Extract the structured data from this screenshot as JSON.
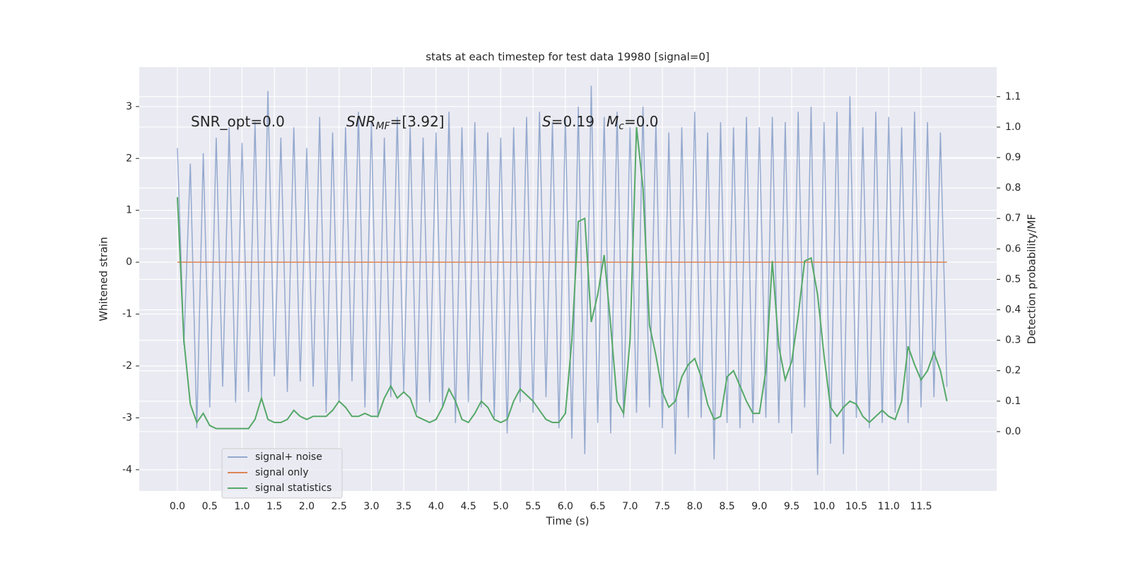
{
  "chart_data": {
    "type": "line",
    "title": "stats at each timestep for test data 19980 [signal=0]",
    "x_label": "Time (s)",
    "y_label": "Whitened strain",
    "y2_label": "Detection probability/MF",
    "annotations": [
      {
        "text": "SNR_opt=0.0"
      },
      {
        "symbol": "SNR",
        "subscript": "MF",
        "text": "=[3.92]"
      },
      {
        "symbol": "S",
        "text": "=0.19"
      },
      {
        "symbol": "M",
        "subscript": "c",
        "text": "=0.0"
      }
    ],
    "x": [
      0.0,
      0.1,
      0.2,
      0.3,
      0.4,
      0.5,
      0.6,
      0.7,
      0.8,
      0.9,
      1.0,
      1.1,
      1.2,
      1.3,
      1.4,
      1.5,
      1.6,
      1.7,
      1.8,
      1.9,
      2.0,
      2.1,
      2.2,
      2.3,
      2.4,
      2.5,
      2.6,
      2.7,
      2.8,
      2.9,
      3.0,
      3.1,
      3.2,
      3.3,
      3.4,
      3.5,
      3.6,
      3.7,
      3.8,
      3.9,
      4.0,
      4.1,
      4.2,
      4.3,
      4.4,
      4.5,
      4.6,
      4.7,
      4.8,
      4.9,
      5.0,
      5.1,
      5.2,
      5.3,
      5.4,
      5.5,
      5.6,
      5.7,
      5.8,
      5.9,
      6.0,
      6.1,
      6.2,
      6.3,
      6.4,
      6.5,
      6.6,
      6.7,
      6.8,
      6.9,
      7.0,
      7.1,
      7.2,
      7.3,
      7.4,
      7.5,
      7.6,
      7.7,
      7.8,
      7.9,
      8.0,
      8.1,
      8.2,
      8.3,
      8.4,
      8.5,
      8.6,
      8.7,
      8.8,
      8.9,
      9.0,
      9.1,
      9.2,
      9.3,
      9.4,
      9.5,
      9.6,
      9.7,
      9.8,
      9.9,
      10.0,
      10.1,
      10.2,
      10.3,
      10.4,
      10.5,
      10.6,
      10.7,
      10.8,
      10.9,
      11.0,
      11.1,
      11.2,
      11.3,
      11.4,
      11.5,
      11.6,
      11.7,
      11.8,
      11.9
    ],
    "series": [
      {
        "name": "signal+ noise",
        "color": "#4c72b0",
        "opacity": 0.55,
        "values": [
          2.2,
          -1.6,
          1.9,
          -3.2,
          2.1,
          -2.8,
          2.4,
          -2.4,
          2.6,
          -2.7,
          2.3,
          -2.5,
          2.7,
          -2.6,
          3.3,
          -2.2,
          2.4,
          -2.5,
          2.6,
          -2.3,
          2.2,
          -2.4,
          2.8,
          -2.9,
          2.5,
          -2.7,
          2.6,
          -2.3,
          2.9,
          -2.8,
          2.7,
          -3.0,
          2.4,
          -2.6,
          2.8,
          -2.5,
          2.6,
          -2.9,
          2.4,
          -2.7,
          2.5,
          -2.8,
          2.9,
          -3.1,
          2.6,
          -2.7,
          2.7,
          -2.8,
          2.5,
          -3.0,
          2.4,
          -3.3,
          2.6,
          -2.7,
          2.8,
          -2.9,
          2.9,
          -2.6,
          2.7,
          -3.2,
          2.8,
          -3.4,
          3.0,
          -3.7,
          3.4,
          -3.1,
          2.8,
          -3.3,
          2.9,
          -3.0,
          2.6,
          -2.9,
          3.0,
          -2.8,
          2.7,
          -3.2,
          2.5,
          -3.7,
          2.6,
          -3.0,
          2.9,
          -3.0,
          2.5,
          -3.8,
          2.7,
          -3.1,
          2.6,
          -3.2,
          2.8,
          -3.1,
          2.6,
          -3.0,
          2.8,
          -3.1,
          2.7,
          -3.3,
          2.9,
          -2.8,
          3.0,
          -4.1,
          2.7,
          -3.5,
          2.9,
          -3.7,
          3.2,
          -3.0,
          2.6,
          -3.2,
          2.9,
          -3.1,
          2.8,
          -2.9,
          2.6,
          -3.1,
          2.9,
          -2.8,
          2.7,
          -2.6,
          2.5,
          -2.4
        ]
      },
      {
        "name": "signal only",
        "color": "#dd8452",
        "opacity": 1,
        "values": [
          0,
          0,
          0,
          0,
          0,
          0,
          0,
          0,
          0,
          0,
          0,
          0,
          0,
          0,
          0,
          0,
          0,
          0,
          0,
          0,
          0,
          0,
          0,
          0,
          0,
          0,
          0,
          0,
          0,
          0,
          0,
          0,
          0,
          0,
          0,
          0,
          0,
          0,
          0,
          0,
          0,
          0,
          0,
          0,
          0,
          0,
          0,
          0,
          0,
          0,
          0,
          0,
          0,
          0,
          0,
          0,
          0,
          0,
          0,
          0,
          0,
          0,
          0,
          0,
          0,
          0,
          0,
          0,
          0,
          0,
          0,
          0,
          0,
          0,
          0,
          0,
          0,
          0,
          0,
          0,
          0,
          0,
          0,
          0,
          0,
          0,
          0,
          0,
          0,
          0,
          0,
          0,
          0,
          0,
          0,
          0,
          0,
          0,
          0,
          0,
          0,
          0,
          0,
          0,
          0,
          0,
          0,
          0,
          0,
          0,
          0,
          0,
          0,
          0,
          0,
          0,
          0,
          0,
          0,
          0
        ]
      },
      {
        "name": "signal statistics",
        "color": "#55a868",
        "opacity": 1,
        "axis": "y2",
        "values": [
          0.77,
          0.3,
          0.09,
          0.03,
          0.06,
          0.02,
          0.01,
          0.01,
          0.01,
          0.01,
          0.01,
          0.01,
          0.04,
          0.11,
          0.04,
          0.03,
          0.03,
          0.04,
          0.07,
          0.05,
          0.04,
          0.05,
          0.05,
          0.05,
          0.07,
          0.1,
          0.08,
          0.05,
          0.05,
          0.06,
          0.05,
          0.05,
          0.11,
          0.15,
          0.11,
          0.13,
          0.11,
          0.05,
          0.04,
          0.03,
          0.04,
          0.08,
          0.14,
          0.1,
          0.04,
          0.03,
          0.06,
          0.1,
          0.08,
          0.04,
          0.03,
          0.04,
          0.1,
          0.14,
          0.12,
          0.1,
          0.07,
          0.04,
          0.03,
          0.03,
          0.06,
          0.3,
          0.69,
          0.7,
          0.36,
          0.45,
          0.58,
          0.35,
          0.1,
          0.06,
          0.3,
          1.0,
          0.8,
          0.35,
          0.25,
          0.13,
          0.08,
          0.1,
          0.18,
          0.22,
          0.24,
          0.18,
          0.09,
          0.04,
          0.05,
          0.18,
          0.2,
          0.15,
          0.1,
          0.06,
          0.06,
          0.2,
          0.56,
          0.28,
          0.17,
          0.23,
          0.38,
          0.56,
          0.57,
          0.45,
          0.25,
          0.08,
          0.05,
          0.08,
          0.1,
          0.09,
          0.05,
          0.03,
          0.05,
          0.07,
          0.05,
          0.04,
          0.1,
          0.28,
          0.22,
          0.17,
          0.2,
          0.26,
          0.2,
          0.1
        ]
      }
    ],
    "xlim": [
      -0.59,
      12.67
    ],
    "xticks": [
      {
        "value": 0,
        "label": "0.0"
      },
      0.5,
      {
        "value": 1,
        "label": "1.0"
      },
      1.5,
      {
        "value": 2,
        "label": "2.0"
      },
      2.5,
      {
        "value": 3,
        "label": "3.0"
      },
      3.5,
      {
        "value": 4,
        "label": "4.0"
      },
      4.5,
      {
        "value": 5,
        "label": "5.0"
      },
      5.5,
      {
        "value": 6,
        "label": "6.0"
      },
      6.5,
      {
        "value": 7,
        "label": "7.0"
      },
      7.5,
      {
        "value": 8,
        "label": "8.0"
      },
      8.5,
      {
        "value": 9,
        "label": "9.0"
      },
      9.5,
      {
        "value": 10,
        "label": "10.0"
      },
      10.5,
      {
        "value": 11,
        "label": "11.0"
      },
      11.5
    ],
    "ylim": [
      -4.41,
      3.76
    ],
    "yticks": [
      -4,
      -3,
      -2,
      -1,
      0,
      1,
      2,
      3
    ],
    "y2lim": [
      -0.195,
      1.197
    ],
    "y2ticks": [
      {
        "value": 0,
        "label": "0.0"
      },
      0.1,
      0.2,
      0.3,
      0.4,
      0.5,
      0.6,
      0.7,
      0.8,
      0.9,
      {
        "value": 1,
        "label": "1.0"
      },
      1.1
    ],
    "grid": true,
    "legend": "lower left"
  }
}
